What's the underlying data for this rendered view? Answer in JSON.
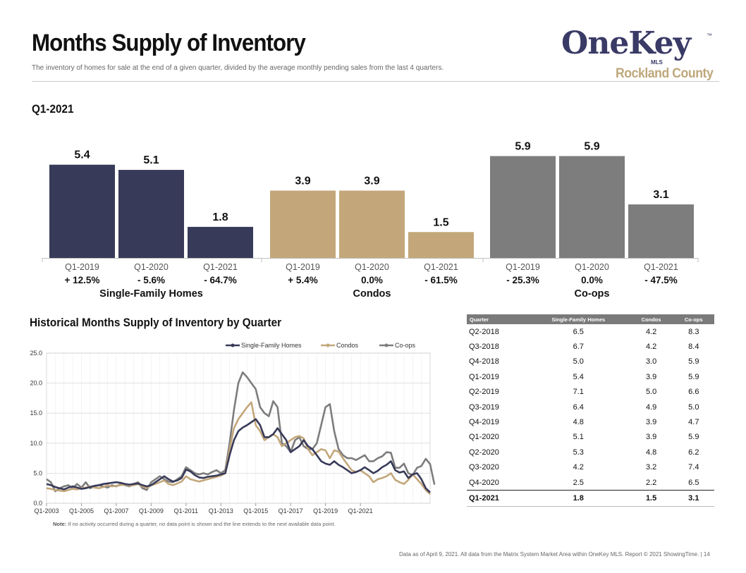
{
  "header": {
    "title": "Months Supply of Inventory",
    "subtitle": "The inventory of homes for sale at the end of a given quarter, divided by the average monthly pending sales from the last 4 quarters.",
    "logo_text": "OneKey",
    "logo_mls": "MLS",
    "logo_tm": "™",
    "logo_county": "Rockland County"
  },
  "period_label": "Q1-2021",
  "colors": {
    "sfh": "#383a59",
    "condo": "#c3a77a",
    "coop": "#7d7d7d",
    "axis": "#bfbfbf",
    "grid": "#d9d9d9"
  },
  "chart_data": [
    {
      "type": "bar",
      "groups": [
        {
          "name": "Single-Family Homes",
          "categories": [
            "Q1-2019",
            "Q1-2020",
            "Q1-2021"
          ],
          "values": [
            5.4,
            5.1,
            1.8
          ],
          "value_labels": [
            "5.4",
            "5.1",
            "1.8"
          ],
          "changes": [
            "+ 12.5%",
            "- 5.6%",
            "- 64.7%"
          ]
        },
        {
          "name": "Condos",
          "categories": [
            "Q1-2019",
            "Q1-2020",
            "Q1-2021"
          ],
          "values": [
            3.9,
            3.9,
            1.5
          ],
          "value_labels": [
            "3.9",
            "3.9",
            "1.5"
          ],
          "changes": [
            "+ 5.4%",
            "0.0%",
            "- 61.5%"
          ]
        },
        {
          "name": "Co-ops",
          "categories": [
            "Q1-2019",
            "Q1-2020",
            "Q1-2021"
          ],
          "values": [
            5.9,
            5.9,
            3.1
          ],
          "value_labels": [
            "5.9",
            "5.9",
            "3.1"
          ],
          "changes": [
            "- 25.3%",
            "0.0%",
            "- 47.5%"
          ]
        }
      ],
      "ylim": [
        0,
        7
      ]
    },
    {
      "type": "line",
      "title": "Historical Months Supply of Inventory by Quarter",
      "x_start": "Q1-2003",
      "x_ticks": [
        "Q1-2003",
        "Q1-2005",
        "Q1-2007",
        "Q1-2009",
        "Q1-2011",
        "Q1-2013",
        "Q1-2015",
        "Q1-2017",
        "Q1-2019",
        "Q1-2021"
      ],
      "y_ticks": [
        "0.0",
        "5.0",
        "10.0",
        "15.0",
        "20.0",
        "25.0"
      ],
      "ylim": [
        0,
        25
      ],
      "legend": "top",
      "series": [
        {
          "name": "Single-Family Homes",
          "values": [
            3.2,
            3.0,
            2.7,
            2.5,
            2.3,
            2.6,
            2.8,
            2.6,
            2.4,
            2.5,
            2.7,
            2.9,
            3.0,
            3.2,
            3.3,
            3.4,
            3.5,
            3.4,
            3.2,
            3.1,
            3.2,
            3.3,
            3.0,
            2.8,
            3.0,
            3.5,
            4.0,
            4.5,
            4.0,
            3.6,
            3.8,
            4.2,
            5.6,
            5.3,
            4.7,
            4.3,
            4.2,
            4.4,
            4.5,
            4.6,
            4.8,
            5.0,
            8.0,
            10.5,
            12.0,
            12.6,
            13.0,
            13.5,
            14.0,
            13.0,
            11.0,
            11.0,
            11.5,
            12.5,
            11.5,
            10.5,
            8.5,
            9.0,
            9.5,
            10.5,
            9.5,
            9.0,
            8.0,
            7.0,
            6.6,
            6.4,
            7.0,
            6.4,
            6.0,
            5.5,
            5.0,
            5.2,
            5.5,
            6.0,
            5.5,
            5.0,
            5.4,
            6.0,
            6.4,
            7.0,
            5.5,
            5.1,
            5.3,
            4.2,
            4.8,
            5.0,
            4.0,
            2.5,
            1.8
          ]
        },
        {
          "name": "Condos",
          "values": [
            2.5,
            2.4,
            2.2,
            2.1,
            2.0,
            2.2,
            2.4,
            2.3,
            2.5,
            2.6,
            2.8,
            2.6,
            2.5,
            2.7,
            3.0,
            2.8,
            2.9,
            3.0,
            3.1,
            2.9,
            3.0,
            3.2,
            2.8,
            2.5,
            3.0,
            3.2,
            3.5,
            3.8,
            3.2,
            3.0,
            3.3,
            3.6,
            4.5,
            4.0,
            3.8,
            3.6,
            3.8,
            4.0,
            4.2,
            4.4,
            4.6,
            5.0,
            9.0,
            12.5,
            14.0,
            15.0,
            16.0,
            16.8,
            13.0,
            12.0,
            10.5,
            11.0,
            11.5,
            11.0,
            9.5,
            10.0,
            10.5,
            11.0,
            11.2,
            10.8,
            9.0,
            8.0,
            8.5,
            9.0,
            8.8,
            7.5,
            8.8,
            8.6,
            7.5,
            6.5,
            5.5,
            5.2,
            5.5,
            5.0,
            4.5,
            3.5,
            4.0,
            4.2,
            4.5,
            5.0,
            3.9,
            3.5,
            3.2,
            3.9,
            4.8,
            4.0,
            3.2,
            2.2,
            1.5
          ]
        },
        {
          "name": "Co-ops",
          "values": [
            4.0,
            3.5,
            2.0,
            2.5,
            2.8,
            3.0,
            2.5,
            3.2,
            2.6,
            3.5,
            2.5,
            2.8,
            3.0,
            2.8,
            2.6,
            3.0,
            2.8,
            3.2,
            3.0,
            2.8,
            3.2,
            3.5,
            2.5,
            2.2,
            3.5,
            4.0,
            4.5,
            4.0,
            3.6,
            3.5,
            4.0,
            4.5,
            6.0,
            5.5,
            5.0,
            4.8,
            5.0,
            4.8,
            5.2,
            5.5,
            5.0,
            5.5,
            10.0,
            15.5,
            20.0,
            21.8,
            21.0,
            20.0,
            19.0,
            16.0,
            15.0,
            14.5,
            17.0,
            16.0,
            10.0,
            9.5,
            8.5,
            10.5,
            11.0,
            9.5,
            9.0,
            9.0,
            10.0,
            13.0,
            16.0,
            16.5,
            12.0,
            9.0,
            8.0,
            7.5,
            7.5,
            7.2,
            7.6,
            8.0,
            7.0,
            7.0,
            7.5,
            7.8,
            8.5,
            8.4,
            5.9,
            5.9,
            6.6,
            5.0,
            4.7,
            5.9,
            6.2,
            7.4,
            6.5,
            3.1
          ]
        }
      ]
    },
    {
      "type": "table",
      "columns": [
        "Quarter",
        "Single-Family Homes",
        "Condos",
        "Co-ops"
      ],
      "rows": [
        [
          "Q2-2018",
          "6.5",
          "4.2",
          "8.3"
        ],
        [
          "Q3-2018",
          "6.7",
          "4.2",
          "8.4"
        ],
        [
          "Q4-2018",
          "5.0",
          "3.0",
          "5.9"
        ],
        [
          "Q1-2019",
          "5.4",
          "3.9",
          "5.9"
        ],
        [
          "Q2-2019",
          "7.1",
          "5.0",
          "6.6"
        ],
        [
          "Q3-2019",
          "6.4",
          "4.9",
          "5.0"
        ],
        [
          "Q4-2019",
          "4.8",
          "3.9",
          "4.7"
        ],
        [
          "Q1-2020",
          "5.1",
          "3.9",
          "5.9"
        ],
        [
          "Q2-2020",
          "5.3",
          "4.8",
          "6.2"
        ],
        [
          "Q3-2020",
          "4.2",
          "3.2",
          "7.4"
        ],
        [
          "Q4-2020",
          "2.5",
          "2.2",
          "6.5"
        ],
        [
          "Q1-2021",
          "1.8",
          "1.5",
          "3.1"
        ]
      ]
    }
  ],
  "note_label": "Note:",
  "note_text": " If no activity occurred during a quarter, no data point is shown and the line extends to the next available data point.",
  "footer": "Data as of April 9, 2021. All data from the Matrix System Market Area within OneKey MLS. Report © 2021 ShowingTime.  |  14"
}
